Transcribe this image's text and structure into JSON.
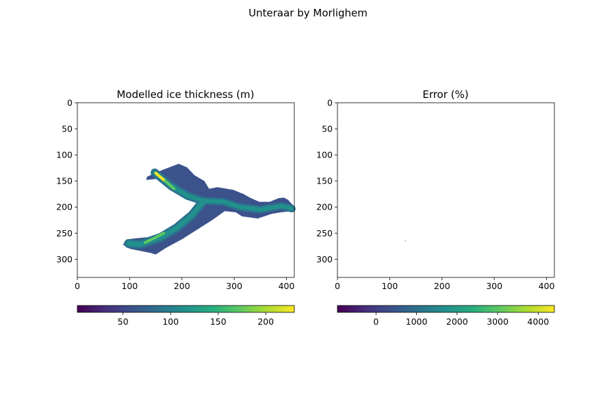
{
  "figure": {
    "suptitle": "Unteraar by Morlighem"
  },
  "chart_data": [
    {
      "type": "heatmap",
      "title": "Modelled ice thickness (m)",
      "xlim": [
        0,
        415
      ],
      "ylim": [
        335,
        0
      ],
      "xticks": [
        "0",
        "100",
        "200",
        "300",
        "400"
      ],
      "yticks": [
        "0",
        "50",
        "100",
        "150",
        "200",
        "250",
        "300"
      ],
      "colormap": "viridis",
      "colorbar": {
        "range": [
          2,
          230
        ],
        "ticks": [
          "50",
          "100",
          "150",
          "200"
        ],
        "orientation": "horizontal"
      },
      "glacier_outline": [
        [
          95,
          262
        ],
        [
          87,
          272
        ],
        [
          100,
          280
        ],
        [
          140,
          288
        ],
        [
          150,
          291
        ],
        [
          170,
          278
        ],
        [
          200,
          262
        ],
        [
          258,
          225
        ],
        [
          282,
          208
        ],
        [
          303,
          210
        ],
        [
          315,
          218
        ],
        [
          345,
          222
        ],
        [
          372,
          213
        ],
        [
          390,
          210
        ],
        [
          410,
          208
        ],
        [
          418,
          205
        ],
        [
          413,
          197
        ],
        [
          403,
          186
        ],
        [
          395,
          182
        ],
        [
          385,
          183
        ],
        [
          368,
          190
        ],
        [
          348,
          190
        ],
        [
          330,
          182
        ],
        [
          318,
          175
        ],
        [
          298,
          167
        ],
        [
          268,
          162
        ],
        [
          252,
          165
        ],
        [
          243,
          150
        ],
        [
          224,
          139
        ],
        [
          210,
          124
        ],
        [
          194,
          117
        ],
        [
          173,
          125
        ],
        [
          155,
          132
        ],
        [
          133,
          142
        ],
        [
          132,
          148
        ],
        [
          152,
          146
        ],
        [
          167,
          153
        ],
        [
          183,
          168
        ],
        [
          222,
          178
        ],
        [
          244,
          198
        ],
        [
          230,
          210
        ],
        [
          213,
          225
        ],
        [
          187,
          242
        ],
        [
          161,
          252
        ],
        [
          133,
          258
        ],
        [
          112,
          260
        ]
      ]
    },
    {
      "type": "heatmap",
      "title": "Error (%)",
      "xlim": [
        0,
        415
      ],
      "ylim": [
        335,
        0
      ],
      "xticks": [
        "0",
        "100",
        "200",
        "300",
        "400"
      ],
      "yticks": [
        "0",
        "50",
        "100",
        "150",
        "200",
        "250",
        "300"
      ],
      "colormap": "viridis",
      "colorbar": {
        "range": [
          -950,
          4400
        ],
        "ticks": [
          "0",
          "1000",
          "2000",
          "3000",
          "4000"
        ],
        "orientation": "horizontal"
      },
      "points": [
        [
          130,
          265
        ]
      ]
    }
  ]
}
